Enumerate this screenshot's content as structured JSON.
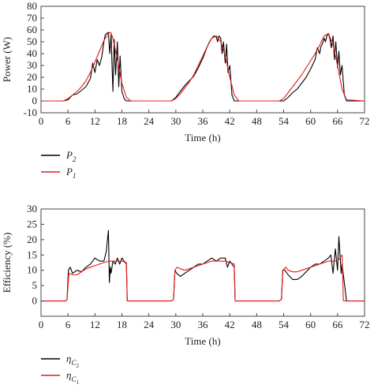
{
  "chart_data": [
    {
      "type": "line",
      "title": "",
      "xlabel": "Time (h)",
      "ylabel": "Power (W)",
      "xlim": [
        0,
        72
      ],
      "ylim": [
        -10,
        80
      ],
      "x_ticks": [
        "0",
        "6",
        "12",
        "18",
        "24",
        "30",
        "36",
        "42",
        "48",
        "54",
        "60",
        "66",
        "72"
      ],
      "y_ticks": [
        "-10",
        "0",
        "10",
        "20",
        "30",
        "40",
        "50",
        "60",
        "70",
        "80"
      ],
      "legend_position": "below",
      "series": [
        {
          "name": "P2",
          "legend": {
            "main": "P",
            "sub": "2"
          },
          "color": "#000000",
          "x": [
            0,
            5,
            6,
            7,
            8,
            9,
            10,
            11,
            11.5,
            12,
            12.5,
            13,
            13.5,
            14,
            14.3,
            14.6,
            15,
            15.3,
            15.6,
            16,
            16.3,
            16.6,
            17,
            17.3,
            17.6,
            18,
            18.5,
            19,
            20,
            24,
            29,
            30,
            31,
            32,
            33,
            34,
            35,
            36,
            37,
            37.5,
            38,
            38.5,
            39,
            39.3,
            39.6,
            40,
            40.3,
            40.6,
            41,
            41.3,
            41.6,
            42,
            42.5,
            43,
            44,
            48,
            54,
            55,
            56,
            57,
            58,
            59,
            60,
            61,
            61.5,
            62,
            62.3,
            62.6,
            63,
            63.3,
            63.6,
            64,
            64.3,
            64.6,
            65,
            65.3,
            65.6,
            66,
            66.3,
            66.6,
            67,
            67.5,
            68,
            72
          ],
          "y": [
            0,
            0,
            1,
            5,
            6,
            9,
            12,
            19,
            32,
            24,
            35,
            30,
            37,
            50,
            56,
            57,
            58,
            40,
            56,
            8,
            52,
            22,
            50,
            12,
            38,
            8,
            2,
            0,
            0,
            0,
            0,
            3,
            8,
            13,
            17,
            21,
            28,
            36,
            46,
            50,
            53,
            55,
            54,
            50,
            55,
            53,
            40,
            50,
            32,
            48,
            24,
            30,
            5,
            0,
            0,
            0,
            0,
            3,
            7,
            10,
            15,
            20,
            27,
            35,
            45,
            40,
            46,
            48,
            53,
            50,
            55,
            57,
            52,
            45,
            55,
            35,
            50,
            28,
            42,
            22,
            30,
            5,
            0,
            0
          ]
        },
        {
          "name": "P1",
          "legend": {
            "main": "P",
            "sub": "1"
          },
          "color": "#e41a1c",
          "x": [
            0,
            5,
            6,
            7,
            8,
            9,
            10,
            11,
            12,
            13,
            14,
            15,
            15.5,
            16,
            17,
            18,
            19,
            20,
            24,
            29,
            30,
            31,
            32,
            33,
            34,
            35,
            36,
            37,
            38,
            39,
            40,
            41,
            42,
            43,
            44,
            48,
            53,
            54,
            55,
            56,
            57,
            58,
            59,
            60,
            61,
            62,
            63,
            64,
            65,
            66,
            67,
            68,
            72
          ],
          "y": [
            0,
            0,
            2,
            5,
            8,
            12,
            17,
            24,
            33,
            42,
            51,
            57,
            58,
            53,
            35,
            15,
            3,
            0,
            0,
            0,
            2,
            6,
            11,
            16,
            22,
            30,
            38,
            46,
            53,
            55,
            50,
            38,
            20,
            5,
            0,
            0,
            0,
            2,
            7,
            12,
            17,
            22,
            28,
            34,
            40,
            47,
            55,
            57,
            47,
            30,
            10,
            1,
            0
          ]
        }
      ]
    },
    {
      "type": "line",
      "title": "",
      "xlabel": "Time (h)",
      "ylabel": "Efficiency (%)",
      "xlim": [
        0,
        72
      ],
      "ylim": [
        -5,
        30
      ],
      "x_ticks": [
        "0",
        "6",
        "12",
        "18",
        "24",
        "30",
        "36",
        "42",
        "48",
        "54",
        "60",
        "66",
        "72"
      ],
      "y_ticks": [
        "0",
        "5",
        "10",
        "15",
        "20",
        "25",
        "30"
      ],
      "legend_position": "below",
      "series": [
        {
          "name": "ηC2",
          "legend": {
            "main": "η",
            "sub": "C",
            "subsub": "2"
          },
          "color": "#000000",
          "x": [
            0,
            5.5,
            5.8,
            6.1,
            6.5,
            7,
            8,
            9,
            10,
            11,
            12,
            13,
            14,
            14.5,
            15,
            15.2,
            15.4,
            15.6,
            16,
            16.5,
            17,
            17.5,
            18,
            18.5,
            19,
            19.2,
            20,
            29,
            29.5,
            29.8,
            30.2,
            31,
            32,
            33,
            34,
            35,
            36,
            37,
            38,
            39,
            40,
            41,
            41.5,
            42,
            42.5,
            43,
            43.2,
            44,
            53,
            53.5,
            53.8,
            54.3,
            55,
            56,
            57,
            58,
            59,
            60,
            61,
            62,
            63,
            64,
            64.5,
            65,
            65.5,
            66,
            66.3,
            66.8,
            67,
            68,
            72
          ],
          "y": [
            0,
            0,
            0.5,
            10,
            11,
            9,
            10,
            9.5,
            11,
            12,
            14,
            13,
            13,
            16,
            23,
            6,
            11,
            9,
            13,
            12,
            14,
            12,
            14,
            13,
            12,
            0,
            0,
            0,
            0.5,
            10,
            9,
            8,
            9,
            10,
            11,
            12,
            12,
            13,
            14,
            13,
            14,
            14,
            11,
            13,
            12,
            11,
            0,
            0,
            0,
            0.5,
            10,
            10,
            8.5,
            7,
            7,
            8,
            9.5,
            11,
            12,
            12,
            13,
            14,
            15,
            9,
            17,
            10,
            21,
            9,
            12,
            0,
            0
          ]
        },
        {
          "name": "ηC1",
          "legend": {
            "main": "η",
            "sub": "C",
            "subsub": "1"
          },
          "color": "#e41a1c",
          "x": [
            0,
            5.5,
            5.8,
            6.2,
            7,
            8,
            9,
            10,
            11,
            12,
            13,
            14,
            15,
            16,
            17,
            18,
            19,
            19.2,
            20,
            29,
            29.5,
            29.8,
            30.3,
            31,
            32,
            33,
            34,
            35,
            36,
            37,
            38,
            39,
            40,
            41,
            42,
            43,
            43.2,
            44,
            53,
            53.5,
            53.8,
            54.5,
            55,
            56,
            57,
            58,
            59,
            60,
            61,
            62,
            63,
            64,
            65,
            66,
            67,
            67.3,
            68,
            72
          ],
          "y": [
            0,
            0,
            0.5,
            9,
            8.5,
            8.5,
            9.5,
            10.5,
            11,
            11.5,
            12,
            12.5,
            13,
            13,
            13,
            13,
            12.5,
            0,
            0,
            0,
            0.5,
            10,
            11,
            10.5,
            10,
            10.5,
            11,
            11.5,
            12,
            12.5,
            13,
            13,
            13,
            13,
            12.5,
            12,
            0,
            0,
            0,
            0.5,
            10,
            11,
            10,
            9.5,
            9.5,
            10,
            10.5,
            11,
            11.5,
            12,
            12.5,
            13,
            13,
            13,
            15,
            0,
            0,
            0
          ]
        }
      ]
    }
  ]
}
